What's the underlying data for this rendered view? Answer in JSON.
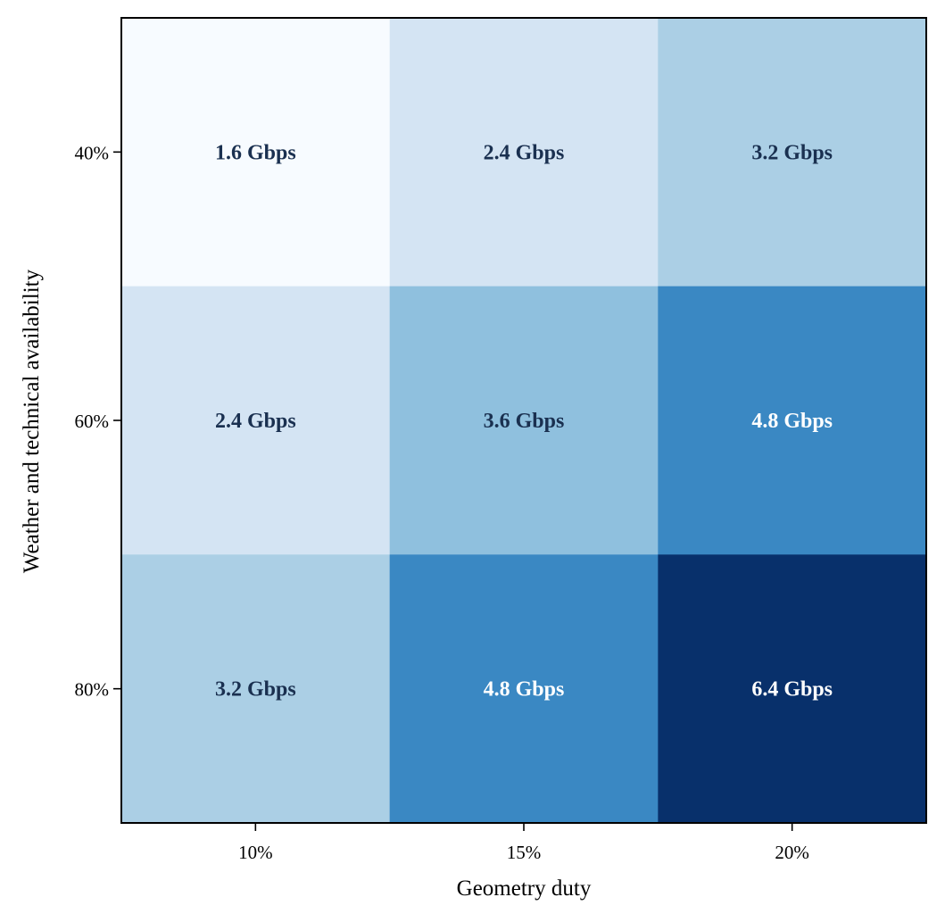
{
  "chart_data": {
    "type": "heatmap",
    "title": "",
    "xlabel": "Geometry duty",
    "ylabel": "Weather and technical availability",
    "x_categories": [
      "10%",
      "15%",
      "20%"
    ],
    "y_categories": [
      "40%",
      "60%",
      "80%"
    ],
    "values": [
      [
        1.6,
        2.4,
        3.2
      ],
      [
        2.4,
        3.6,
        4.8
      ],
      [
        3.2,
        4.8,
        6.4
      ]
    ],
    "value_unit": "Gbps",
    "cell_labels": [
      [
        "1.6 Gbps",
        "2.4 Gbps",
        "3.2 Gbps"
      ],
      [
        "2.4 Gbps",
        "3.6 Gbps",
        "4.8 Gbps"
      ],
      [
        "3.2 Gbps",
        "4.8 Gbps",
        "6.4 Gbps"
      ]
    ],
    "colormap": "Blues",
    "value_range": [
      1.6,
      6.4
    ],
    "colorbar": false,
    "grid": false,
    "legend": "none",
    "colors": {
      "cell_fills": [
        [
          "#f7fbff",
          "#d4e4f3",
          "#abcfe5"
        ],
        [
          "#d4e4f3",
          "#8fc0de",
          "#3a88c3"
        ],
        [
          "#abcfe5",
          "#3a88c3",
          "#08306b"
        ]
      ],
      "dark_text": "#1a3050",
      "light_text": "#ffffff",
      "frame": "#000000"
    }
  }
}
